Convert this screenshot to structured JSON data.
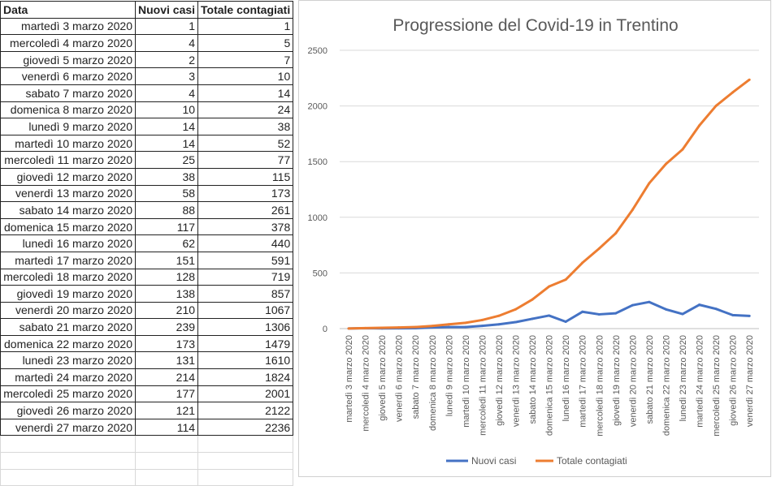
{
  "table": {
    "headers": [
      "Data",
      "Nuovi casi",
      "Totale contagiati"
    ],
    "rows": [
      [
        "martedì 3 marzo 2020",
        "1",
        "1"
      ],
      [
        "mercoledì 4 marzo 2020",
        "4",
        "5"
      ],
      [
        "giovedì 5 marzo 2020",
        "2",
        "7"
      ],
      [
        "venerdì 6 marzo 2020",
        "3",
        "10"
      ],
      [
        "sabato 7 marzo 2020",
        "4",
        "14"
      ],
      [
        "domenica 8 marzo 2020",
        "10",
        "24"
      ],
      [
        "lunedì 9 marzo 2020",
        "14",
        "38"
      ],
      [
        "martedì 10 marzo 2020",
        "14",
        "52"
      ],
      [
        "mercoledì 11 marzo 2020",
        "25",
        "77"
      ],
      [
        "giovedì 12 marzo 2020",
        "38",
        "115"
      ],
      [
        "venerdì 13 marzo 2020",
        "58",
        "173"
      ],
      [
        "sabato 14 marzo 2020",
        "88",
        "261"
      ],
      [
        "domenica 15 marzo 2020",
        "117",
        "378"
      ],
      [
        "lunedì 16 marzo 2020",
        "62",
        "440"
      ],
      [
        "martedì 17 marzo 2020",
        "151",
        "591"
      ],
      [
        "mercoledì 18 marzo 2020",
        "128",
        "719"
      ],
      [
        "giovedì 19 marzo 2020",
        "138",
        "857"
      ],
      [
        "venerdì 20 marzo 2020",
        "210",
        "1067"
      ],
      [
        "sabato 21 marzo 2020",
        "239",
        "1306"
      ],
      [
        "domenica 22 marzo 2020",
        "173",
        "1479"
      ],
      [
        "lunedì 23 marzo 2020",
        "131",
        "1610"
      ],
      [
        "martedì 24 marzo 2020",
        "214",
        "1824"
      ],
      [
        "mercoledì 25 marzo 2020",
        "177",
        "2001"
      ],
      [
        "giovedì 26 marzo 2020",
        "121",
        "2122"
      ],
      [
        "venerdì 27 marzo 2020",
        "114",
        "2236"
      ]
    ]
  },
  "chart_data": {
    "type": "line",
    "title": "Progressione del Covid-19 in Trentino",
    "categories": [
      "martedì 3 marzo 2020",
      "mercoledì 4 marzo 2020",
      "giovedì 5 marzo 2020",
      "venerdì 6 marzo 2020",
      "sabato 7 marzo 2020",
      "domenica 8 marzo 2020",
      "lunedì 9 marzo 2020",
      "martedì 10 marzo 2020",
      "mercoledì 11 marzo 2020",
      "giovedì 12 marzo 2020",
      "venerdì 13 marzo 2020",
      "sabato 14 marzo 2020",
      "domenica 15 marzo 2020",
      "lunedì 16 marzo 2020",
      "martedì 17 marzo 2020",
      "mercoledì 18 marzo 2020",
      "giovedì 19 marzo 2020",
      "venerdì 20 marzo 2020",
      "sabato 21 marzo 2020",
      "domenica 22 marzo 2020",
      "lunedì 23 marzo 2020",
      "martedì 24 marzo 2020",
      "mercoledì 25 marzo 2020",
      "giovedì 26 marzo 2020",
      "venerdì 27 marzo 2020"
    ],
    "series": [
      {
        "name": "Nuovi casi",
        "color": "#4472c4",
        "values": [
          1,
          4,
          2,
          3,
          4,
          10,
          14,
          14,
          25,
          38,
          58,
          88,
          117,
          62,
          151,
          128,
          138,
          210,
          239,
          173,
          131,
          214,
          177,
          121,
          114
        ]
      },
      {
        "name": "Totale contagiati",
        "color": "#ed7d31",
        "values": [
          1,
          5,
          7,
          10,
          14,
          24,
          38,
          52,
          77,
          115,
          173,
          261,
          378,
          440,
          591,
          719,
          857,
          1067,
          1306,
          1479,
          1610,
          1824,
          2001,
          2122,
          2236
        ]
      }
    ],
    "yticks": [
      "0",
      "500",
      "1000",
      "1500",
      "2000",
      "2500"
    ],
    "ylim": [
      0,
      2500
    ],
    "grid": true,
    "legend": "bottom"
  }
}
